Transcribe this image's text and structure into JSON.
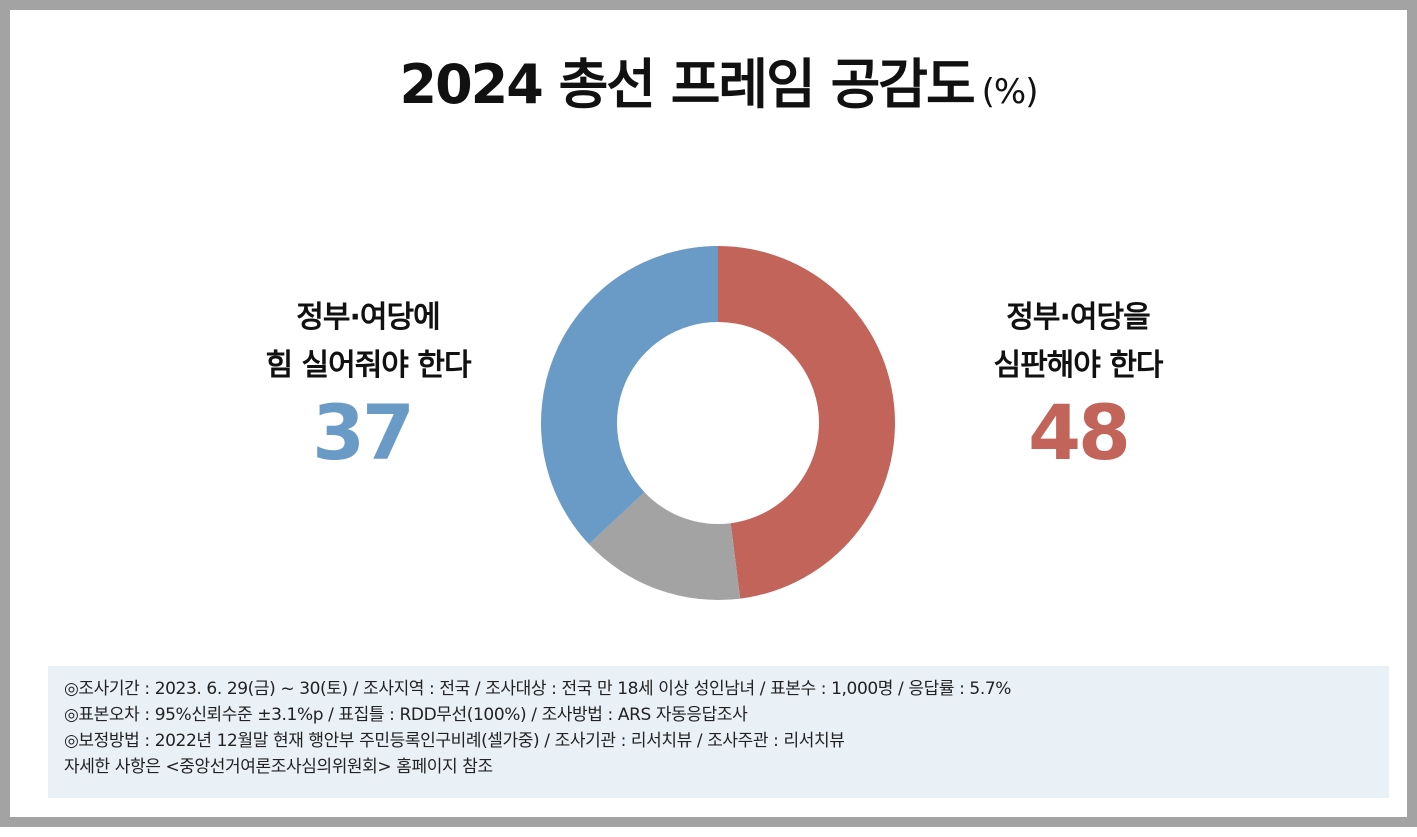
{
  "title": "2024 총선 프레임 공감도",
  "title_unit": "(%)",
  "left": {
    "label_line1": "정부·여당에",
    "label_line2": "힘 실어줘야 한다",
    "value": "37",
    "color": "#6a9ac6"
  },
  "right": {
    "label_line1": "정부·여당을",
    "label_line2": "심판해야 한다",
    "value": "48",
    "color": "#c3645b"
  },
  "chart_data": {
    "type": "pie",
    "donut": true,
    "title": "2024 총선 프레임 공감도",
    "unit": "%",
    "start": "12 o'clock, clockwise",
    "series": [
      {
        "label": "정부·여당을 심판해야 한다",
        "value": 48,
        "color": "#c3645b"
      },
      {
        "label": "",
        "value": 15,
        "color": "#a3a3a3"
      },
      {
        "label": "정부·여당에 힘 실어줘야 한다",
        "value": 37,
        "color": "#6a9ac6"
      }
    ]
  },
  "notes": [
    "◎조사기간 : 2023. 6. 29(금) ~ 30(토) / 조사지역 : 전국 / 조사대상 : 전국 만 18세 이상 성인남녀 / 표본수 : 1,000명 / 응답률 : 5.7%",
    "◎표본오차 : 95%신뢰수준 ±3.1%p  / 표집틀 : RDD무선(100%) / 조사방법 : ARS 자동응답조사",
    "◎보정방법 : 2022년 12월말 현재 행안부 주민등록인구비례(셀가중) / 조사기관 : 리서치뷰 / 조사주관 : 리서치뷰",
    "자세한 사항은 <중앙선거여론조사심의위원회> 홈페이지 참조"
  ]
}
